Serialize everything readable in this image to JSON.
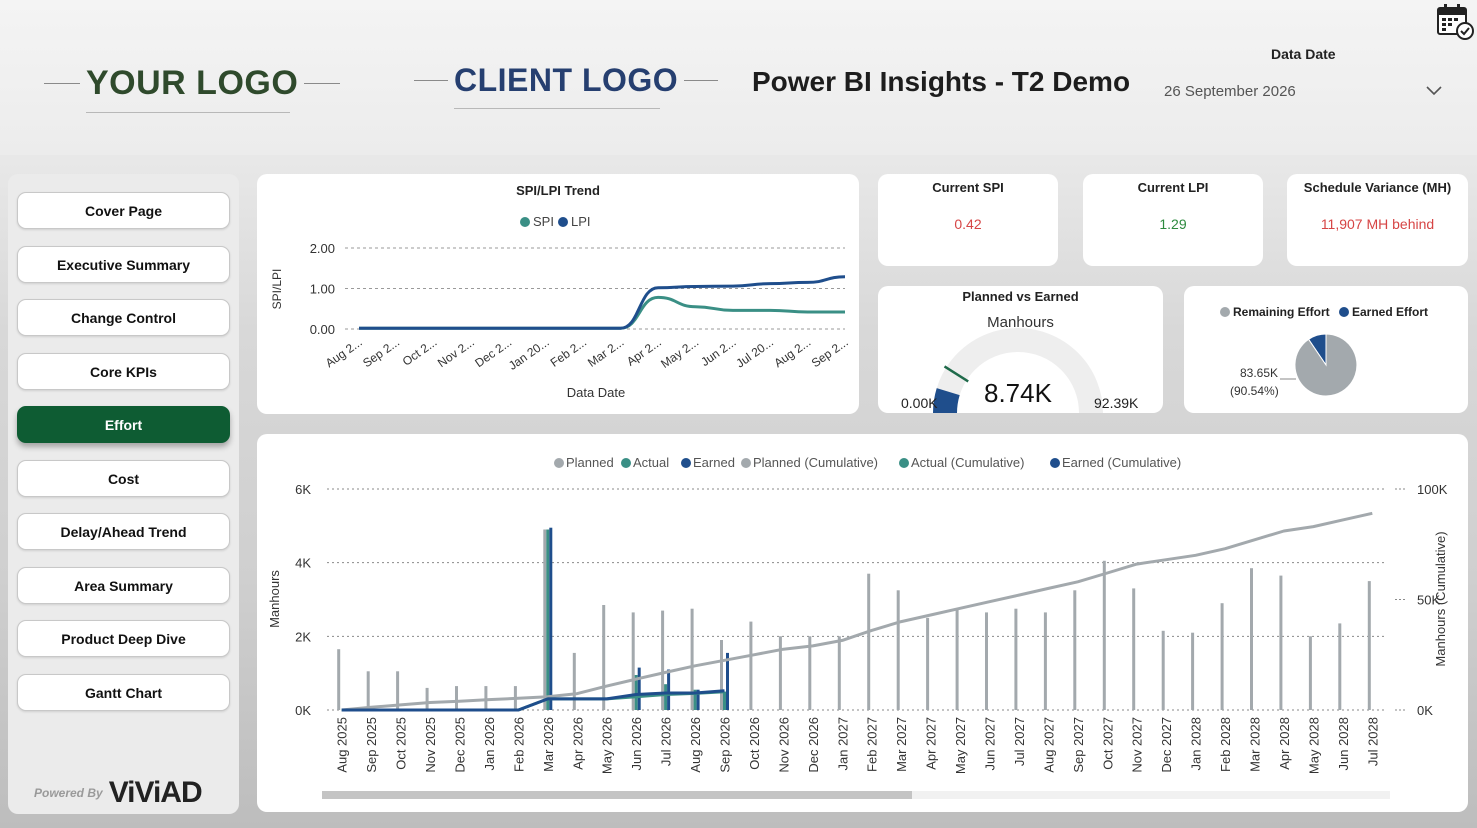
{
  "header": {
    "your_logo": "YOUR LOGO",
    "client_logo": "CLIENT LOGO",
    "title": "Power BI Insights - T2 Demo",
    "data_date_label": "Data Date",
    "data_date_value": "26 September 2026",
    "icons": {
      "calendar": "calendar-check-icon",
      "dropdown": "chevron-down-icon"
    }
  },
  "sidebar": {
    "items": [
      {
        "label": "Cover Page"
      },
      {
        "label": "Executive Summary"
      },
      {
        "label": "Change Control"
      },
      {
        "label": "Core KPIs"
      },
      {
        "label": "Effort",
        "active": true
      },
      {
        "label": "Cost"
      },
      {
        "label": "Delay/Ahead Trend"
      },
      {
        "label": "Area Summary"
      },
      {
        "label": "Product Deep Dive"
      },
      {
        "label": "Gantt Chart"
      }
    ],
    "powered_by": "Powered By",
    "brand": "ViViAD"
  },
  "kpis": {
    "current_spi": {
      "label": "Current SPI",
      "value": "0.42"
    },
    "current_lpi": {
      "label": "Current LPI",
      "value": "1.29"
    },
    "schedule_variance": {
      "label": "Schedule Variance (MH)",
      "value": "11,907 MH behind"
    }
  },
  "gauge": {
    "title": "Planned vs Earned",
    "subtitle": "Manhours",
    "value_label": "8.74K",
    "min_label": "0.00K",
    "max_label": "92.39K"
  },
  "pie": {
    "legend": [
      "Remaining Effort",
      "Earned Effort"
    ],
    "label_value": "83.65K",
    "label_pct": "(90.54%)"
  },
  "colors": {
    "spi": "#3a8f85",
    "lpi": "#1f4e8c",
    "planned": "#a3a9ad",
    "actual": "#3a8f85",
    "earned": "#1f4e8c",
    "active_nav": "#0e5c33",
    "negative": "#d64545",
    "positive": "#2d8a3e"
  },
  "chart_data": [
    {
      "type": "line",
      "title": "SPI/LPI Trend",
      "xlabel": "Data Date",
      "ylabel": "SPI/LPI",
      "ylim": [
        0,
        2
      ],
      "yticks": [
        "0.00",
        "1.00",
        "2.00"
      ],
      "x": [
        "Aug 2...",
        "Sep 2...",
        "Oct 2...",
        "Nov 2...",
        "Dec 2...",
        "Jan 20...",
        "Feb 2...",
        "Mar 2...",
        "Apr 2...",
        "May 2...",
        "Jun 2...",
        "Jul 20...",
        "Aug 2...",
        "Sep 2..."
      ],
      "series": [
        {
          "name": "SPI",
          "values": [
            0.02,
            0.02,
            0.02,
            0.02,
            0.02,
            0.02,
            0.02,
            0.02,
            0.78,
            0.55,
            0.46,
            0.46,
            0.42,
            0.42
          ]
        },
        {
          "name": "LPI",
          "values": [
            0.02,
            0.02,
            0.02,
            0.02,
            0.02,
            0.02,
            0.02,
            0.02,
            1.02,
            1.05,
            1.06,
            1.12,
            1.15,
            1.29
          ]
        }
      ],
      "legend_position": "top"
    },
    {
      "type": "bar",
      "ylabel": "Manhours",
      "y2label": "Manhours (Cumulative)",
      "ylim": [
        0,
        6000
      ],
      "y2lim": [
        0,
        100000
      ],
      "yticks": [
        "0K",
        "2K",
        "4K",
        "6K"
      ],
      "y2ticks": [
        "0K",
        "50K",
        "100K"
      ],
      "categories": [
        "Aug 2025",
        "Sep 2025",
        "Oct 2025",
        "Nov 2025",
        "Dec 2025",
        "Jan 2026",
        "Feb 2026",
        "Mar 2026",
        "Apr 2026",
        "May 2026",
        "Jun 2026",
        "Jul 2026",
        "Aug 2026",
        "Sep 2026",
        "Oct 2026",
        "Nov 2026",
        "Dec 2026",
        "Jan 2027",
        "Feb 2027",
        "Mar 2027",
        "Apr 2027",
        "May 2027",
        "Jun 2027",
        "Jul 2027",
        "Aug 2027",
        "Sep 2027",
        "Oct 2027",
        "Nov 2027",
        "Dec 2027",
        "Jan 2028",
        "Feb 2028",
        "Mar 2028",
        "Apr 2028",
        "May 2028",
        "Jun 2028",
        "Jul 2028"
      ],
      "series": [
        {
          "name": "Planned",
          "values": [
            1650,
            1050,
            1050,
            600,
            650,
            650,
            650,
            4900,
            1550,
            2850,
            2650,
            2700,
            2750,
            1900,
            2400,
            2000,
            2000,
            2000,
            3700,
            3250,
            2500,
            2750,
            2650,
            2750,
            2650,
            3250,
            4050,
            3300,
            2150,
            2100,
            2900,
            3850,
            3650,
            2000,
            2350,
            3500
          ]
        },
        {
          "name": "Actual",
          "values": [
            0,
            0,
            0,
            0,
            0,
            0,
            0,
            4900,
            0,
            0,
            950,
            700,
            550,
            500,
            null,
            null,
            null,
            null,
            null,
            null,
            null,
            null,
            null,
            null,
            null,
            null,
            null,
            null,
            null,
            null,
            null,
            null,
            null,
            null,
            null,
            null
          ]
        },
        {
          "name": "Earned",
          "values": [
            0,
            0,
            0,
            0,
            0,
            0,
            0,
            4950,
            0,
            0,
            1150,
            1100,
            550,
            1550,
            null,
            null,
            null,
            null,
            null,
            null,
            null,
            null,
            null,
            null,
            null,
            null,
            null,
            null,
            null,
            null,
            null,
            null,
            null,
            null,
            null,
            null
          ]
        },
        {
          "name": "Planned (Cumulative)",
          "axis": "right",
          "values": [
            0,
            1200,
            2300,
            3400,
            4000,
            4700,
            5300,
            6000,
            7400,
            10800,
            14000,
            17000,
            20000,
            22500,
            25000,
            27500,
            29000,
            31500,
            36000,
            40000,
            43000,
            46000,
            49000,
            52000,
            55000,
            58000,
            62000,
            66000,
            68000,
            70000,
            73000,
            77000,
            81000,
            83000,
            86000,
            89000
          ]
        },
        {
          "name": "Actual (Cumulative)",
          "axis": "right",
          "values": [
            0,
            0,
            0,
            0,
            0,
            0,
            0,
            5000,
            5000,
            5000,
            6000,
            7000,
            7500,
            8300,
            null,
            null,
            null,
            null,
            null,
            null,
            null,
            null,
            null,
            null,
            null,
            null,
            null,
            null,
            null,
            null,
            null,
            null,
            null,
            null,
            null,
            null
          ]
        },
        {
          "name": "Earned (Cumulative)",
          "axis": "right",
          "values": [
            0,
            0,
            0,
            0,
            0,
            0,
            0,
            5000,
            5000,
            5000,
            7000,
            7700,
            7700,
            8700,
            null,
            null,
            null,
            null,
            null,
            null,
            null,
            null,
            null,
            null,
            null,
            null,
            null,
            null,
            null,
            null,
            null,
            null,
            null,
            null,
            null,
            null
          ]
        }
      ],
      "legend_position": "top"
    },
    {
      "type": "pie",
      "categories": [
        "Remaining Effort",
        "Earned Effort"
      ],
      "values": [
        83.65,
        8.74
      ]
    }
  ]
}
